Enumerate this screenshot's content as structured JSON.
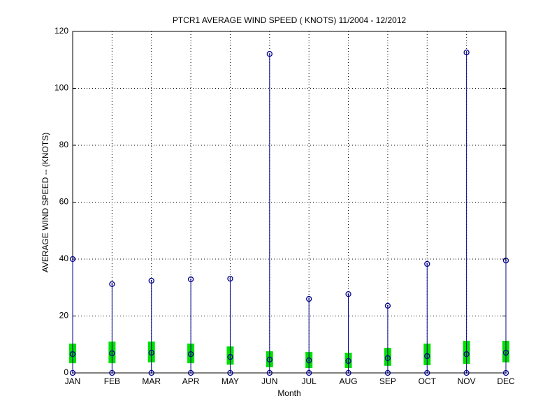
{
  "chart_data": {
    "type": "box",
    "title": "PTCR1  AVERAGE WIND SPEED ( KNOTS) 11/2004 - 12/2012",
    "xlabel": "Month",
    "ylabel": "AVERAGE WIND SPEED -- (KNOTS)",
    "categories": [
      "JAN",
      "FEB",
      "MAR",
      "APR",
      "MAY",
      "JUN",
      "JUL",
      "AUG",
      "SEP",
      "OCT",
      "NOV",
      "DEC"
    ],
    "min": [
      0,
      0,
      0,
      0,
      0,
      0,
      0,
      0,
      0,
      0,
      0,
      0
    ],
    "q1": [
      3.4,
      3.4,
      3.7,
      3.4,
      2.9,
      2.0,
      1.7,
      1.7,
      2.5,
      2.7,
      3.2,
      3.7
    ],
    "median": [
      6.6,
      6.9,
      7.1,
      6.6,
      5.6,
      4.7,
      4.4,
      4.2,
      5.2,
      5.9,
      6.6,
      7.1
    ],
    "q3": [
      10.3,
      11.0,
      11.0,
      10.3,
      9.3,
      7.6,
      7.4,
      7.1,
      8.8,
      10.3,
      11.3,
      11.3
    ],
    "max": [
      40.0,
      31.2,
      32.4,
      32.9,
      33.1,
      112.1,
      26.0,
      27.7,
      23.6,
      38.3,
      112.6,
      39.5
    ],
    "color": "#00008b",
    "box_color": "#00e000",
    "ylim": [
      0,
      120
    ],
    "yticks": [
      0,
      20,
      40,
      60,
      80,
      100,
      120
    ],
    "grid": true
  }
}
